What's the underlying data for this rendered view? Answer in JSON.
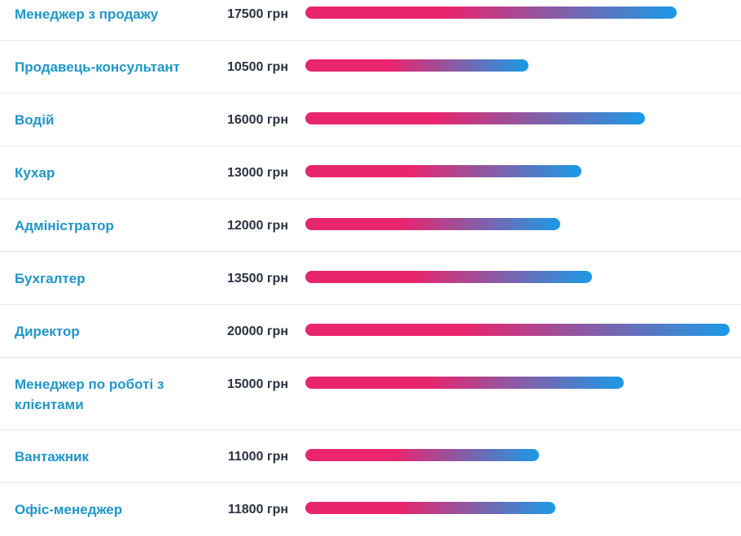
{
  "salary_scale_max": 20000,
  "colors": {
    "job_link": "#1e96c8",
    "salary_text": "#2a3240",
    "bar_start": "#e8256d",
    "bar_end": "#1b9ae6",
    "divider": "#e6e6e6"
  },
  "items": [
    {
      "title": "Менеджер з продажу",
      "salary": "17500 грн",
      "amount": 17500
    },
    {
      "title": "Продавець-консультант",
      "salary": "10500 грн",
      "amount": 10500
    },
    {
      "title": "Водій",
      "salary": "16000 грн",
      "amount": 16000
    },
    {
      "title": "Кухар",
      "salary": "13000 грн",
      "amount": 13000
    },
    {
      "title": "Адміністратор",
      "salary": "12000 грн",
      "amount": 12000
    },
    {
      "title": "Бухгалтер",
      "salary": "13500 грн",
      "amount": 13500
    },
    {
      "title": "Директор",
      "salary": "20000 грн",
      "amount": 20000
    },
    {
      "title": "Менеджер по роботі з клієнтами",
      "salary": "15000 грн",
      "amount": 15000
    },
    {
      "title": "Вантажник",
      "salary": "11000 грн",
      "amount": 11000
    },
    {
      "title": "Офіс-менеджер",
      "salary": "11800 грн",
      "amount": 11800
    }
  ]
}
